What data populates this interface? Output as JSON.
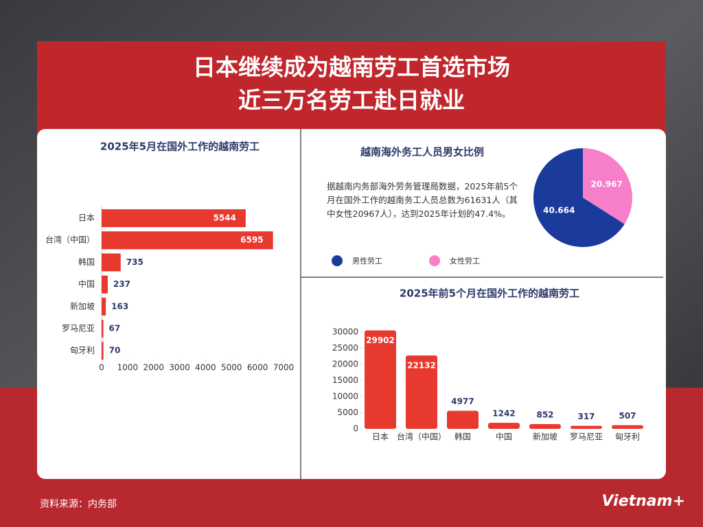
{
  "header": {
    "title_line1": "日本继续成为越南劳工首选市场",
    "title_line2": "近三万名劳工赴日就业"
  },
  "chart_data": [
    {
      "type": "hbar",
      "title": "2025年5月在国外工作的越南劳工",
      "categories": [
        "日本",
        "台湾（中国）",
        "韩国",
        "中国",
        "新加坡",
        "罗马尼亚",
        "匈牙利"
      ],
      "values": [
        5544,
        6595,
        735,
        237,
        163,
        67,
        70
      ],
      "color": "#e8392f",
      "xlim": [
        0,
        7000
      ],
      "xticks": [
        0,
        1000,
        2000,
        3000,
        4000,
        5000,
        6000,
        7000
      ]
    },
    {
      "type": "pie",
      "title": "越南海外务工人员男女比例",
      "categories": [
        "男性劳工",
        "女性劳工"
      ],
      "values": [
        40.664,
        20.967
      ],
      "colors": [
        "#1a3a9c",
        "#f77fc9"
      ]
    },
    {
      "type": "bar",
      "title": "2025年前5个月在国外工作的越南劳工",
      "categories": [
        "日本",
        "台湾（中国）",
        "韩国",
        "中国",
        "新加坡",
        "罗马尼亚",
        "匈牙利"
      ],
      "values": [
        29902,
        22132,
        4977,
        1242,
        852,
        317,
        507
      ],
      "color": "#e8392f",
      "ylim": [
        0,
        30000
      ],
      "yticks": [
        0,
        5000,
        10000,
        15000,
        20000,
        25000,
        30000
      ]
    }
  ],
  "note": "据越南内务部海外劳务管理局数据，2025年前5个月在国外工作的越南务工人员总数为61631人（其中女性20967人），达到2025年计划的47.4%。",
  "source": "资料来源：内务部",
  "logo": "Vietnam+"
}
